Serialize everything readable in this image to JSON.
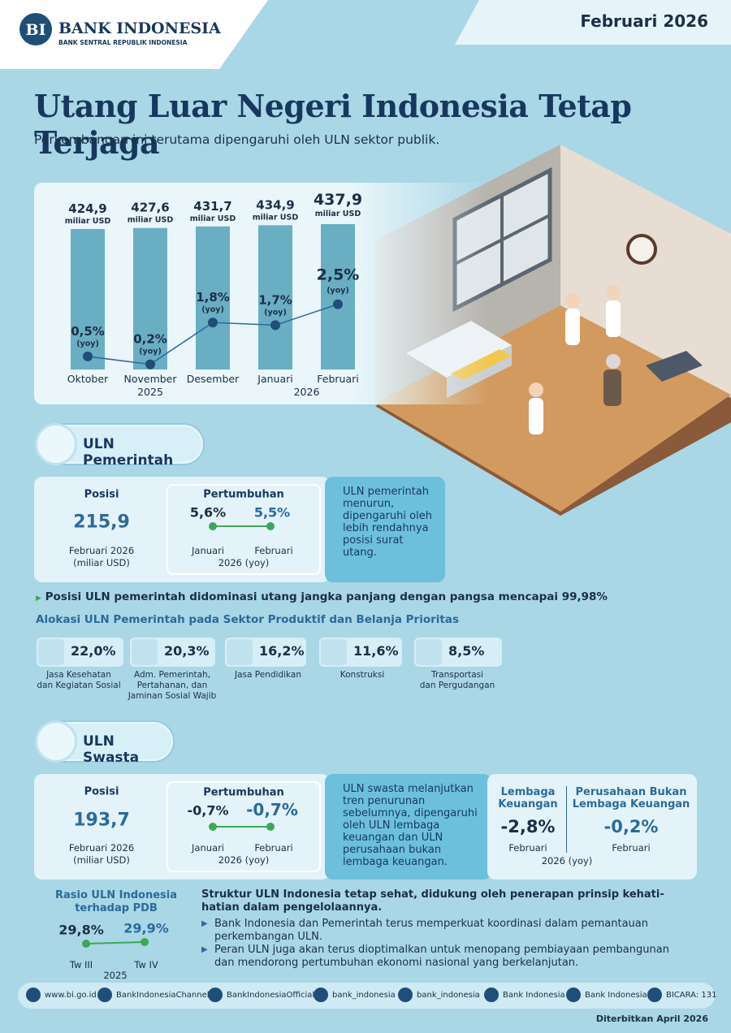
{
  "header": {
    "brand": "BANK INDONESIA",
    "brand_sub": "BANK SENTRAL REPUBLIK INDONESIA",
    "period": "Februari 2026"
  },
  "title": "Utang Luar Negeri Indonesia Tetap Terjaga",
  "subtitle": "Perkembangan ini terutama dipengaruhi oleh ULN sektor publik.",
  "chart_data": {
    "type": "bar",
    "categories": [
      "Oktober",
      "November",
      "Desember",
      "Januari",
      "Februari"
    ],
    "years": [
      "2025",
      "2026"
    ],
    "ylim": [
      50,
      440
    ],
    "y2lim": [
      0,
      5.6
    ],
    "series": [
      {
        "type": "bar",
        "color": "#6aaec4",
        "unit": "miliar USD",
        "values": [
          424.9,
          427.6,
          431.7,
          434.9,
          437.9
        ],
        "value_labels": [
          "424,9",
          "427,6",
          "431,7",
          "434,9",
          "437,9"
        ]
      },
      {
        "type": "line",
        "axis": "y2",
        "color": "#2b6a9a",
        "unit": "(yoy)",
        "values": [
          0.5,
          0.2,
          1.8,
          1.7,
          2.5
        ],
        "value_labels": [
          "0,5%",
          "0,2%",
          "1,8%",
          "1,7%",
          "2,5%"
        ]
      }
    ]
  },
  "government": {
    "title": "ULN Pemerintah",
    "position_label": "Posisi",
    "position": "215,9",
    "position_period": "Februari 2026",
    "position_unit": "(miliar USD)",
    "growth_label": "Pertumbuhan",
    "growth": [
      {
        "value": "5,6%",
        "month": "Januari"
      },
      {
        "value": "5,5%",
        "month": "Februari"
      }
    ],
    "growth_period": "2026 (yoy)",
    "note": "ULN pemerintah menurun, dipengaruhi oleh lebih rendahnya posisi surat utang.",
    "highlight": "Posisi ULN pemerintah didominasi utang jangka panjang dengan pangsa mencapai 99,98%",
    "allocation_title": "Alokasi ULN Pemerintah pada Sektor Produktif dan Belanja Prioritas",
    "allocation": [
      {
        "value": "22,0%",
        "name": [
          "Jasa Kesehatan",
          "dan Kegiatan Sosial"
        ]
      },
      {
        "value": "20,3%",
        "name": [
          "Adm. Pemerintah,",
          "Pertahanan, dan",
          "Jaminan Sosial Wajib"
        ]
      },
      {
        "value": "16,2%",
        "name": [
          "Jasa Pendidikan"
        ]
      },
      {
        "value": "11,6%",
        "name": [
          "Konstruksi"
        ]
      },
      {
        "value": "8,5%",
        "name": [
          "Transportasi",
          "dan Pergudangan"
        ]
      }
    ]
  },
  "private": {
    "title": "ULN Swasta",
    "position_label": "Posisi",
    "position": "193,7",
    "position_period": "Februari 2026",
    "position_unit": "(miliar USD)",
    "growth_label": "Pertumbuhan",
    "growth": [
      {
        "value": "-0,7%",
        "month": "Januari"
      },
      {
        "value": "-0,7%",
        "month": "Februari"
      }
    ],
    "growth_period": "2026 (yoy)",
    "note": "ULN swasta melanjutkan tren penurunan sebelumnya, dipengaruhi oleh ULN lembaga keuangan dan ULN perusahaan bukan lembaga keuangan.",
    "sectors": [
      {
        "name": [
          "Lembaga",
          "Keuangan"
        ],
        "value": "-2,8%",
        "month": "Februari"
      },
      {
        "name": [
          "Perusahaan Bukan",
          "Lembaga Keuangan"
        ],
        "value": "-0,2%",
        "month": "Februari"
      }
    ],
    "sectors_period": "2026 (yoy)"
  },
  "ratio": {
    "title": [
      "Rasio ULN Indonesia",
      "terhadap PDB"
    ],
    "points": [
      {
        "value": "29,8%",
        "quarter": "Tw III"
      },
      {
        "value": "29,9%",
        "quarter": "Tw IV"
      }
    ],
    "year": "2025"
  },
  "structure": {
    "lead": "Struktur ULN Indonesia tetap sehat, didukung oleh penerapan prinsip kehati-hatian dalam pengelolaannya.",
    "bullets": [
      "Bank Indonesia dan Pemerintah terus memperkuat koordinasi dalam pemantauan perkembangan ULN.",
      "Peran ULN juga akan terus dioptimalkan untuk menopang pembiayaan pembangunan dan mendorong pertumbuhan ekonomi nasional yang berkelanjutan."
    ]
  },
  "footer": {
    "links": [
      "www.bi.go.id",
      "BankIndonesiaChannel",
      "BankIndonesiaOfficial",
      "bank_indonesia",
      "bank_indonesia",
      "Bank Indonesia",
      "Bank Indonesia",
      "BICARA: 131"
    ],
    "published": "Diterbitkan April 2026"
  }
}
